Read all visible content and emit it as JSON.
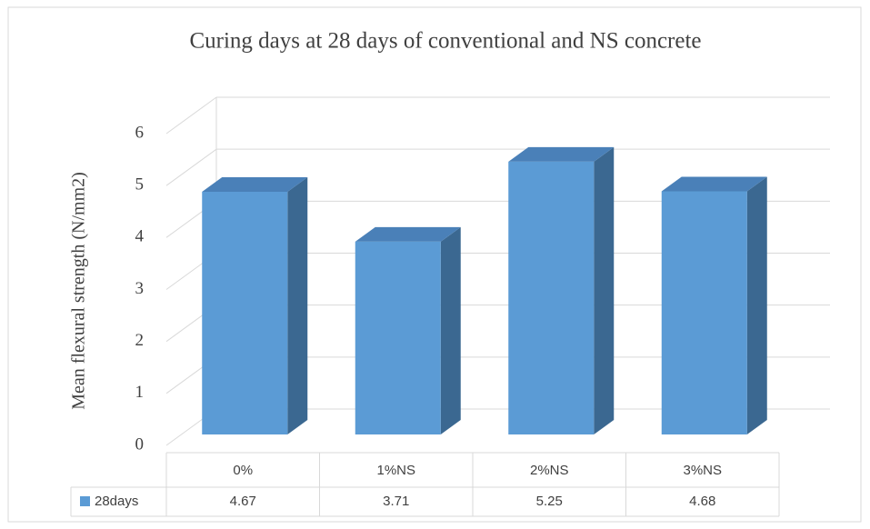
{
  "chart_data": {
    "type": "bar3d",
    "title": "Curing days at 28 days of conventional and  NS concrete",
    "y_label": "Mean flexural strength (N/mm2)",
    "categories": [
      "0%",
      "1%NS",
      "2%NS",
      "3%NS"
    ],
    "series": [
      {
        "name": "28days",
        "color": "#5b9bd5",
        "values": [
          4.67,
          3.71,
          5.25,
          4.68
        ]
      }
    ],
    "ylim": [
      0,
      6
    ],
    "yticks": [
      0,
      1,
      2,
      3,
      4,
      5,
      6
    ],
    "grid": true,
    "data_table": true
  }
}
